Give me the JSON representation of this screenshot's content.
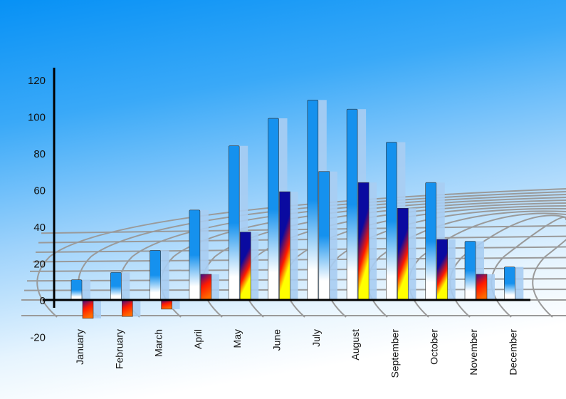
{
  "chart_data": {
    "type": "bar",
    "title": "",
    "xlabel": "",
    "ylabel": "",
    "categories": [
      "January",
      "February",
      "March",
      "April",
      "May",
      "June",
      "July",
      "August",
      "September",
      "October",
      "November",
      "December"
    ],
    "series": [
      {
        "values": [
          11,
          15,
          27,
          49,
          84,
          99,
          109,
          104,
          86,
          64,
          32,
          18
        ],
        "style": "blue-white gradient"
      },
      {
        "values": [
          -10,
          -9,
          -5,
          14,
          37,
          59,
          70,
          64,
          50,
          33,
          14,
          null
        ],
        "style": "blue-red-yellow gradient"
      }
    ],
    "ylim": [
      -20,
      120
    ],
    "yticks": [
      -20,
      0,
      20,
      40,
      60,
      80,
      100,
      120
    ],
    "grid": false,
    "legend": "none",
    "colors": {
      "primary": "#1591ee",
      "dark": "#0a0aa0",
      "hot": "#ff1a00",
      "warm": "#ffff00",
      "shadow": "#a8cdf2",
      "background_top": "#0791f5"
    }
  }
}
